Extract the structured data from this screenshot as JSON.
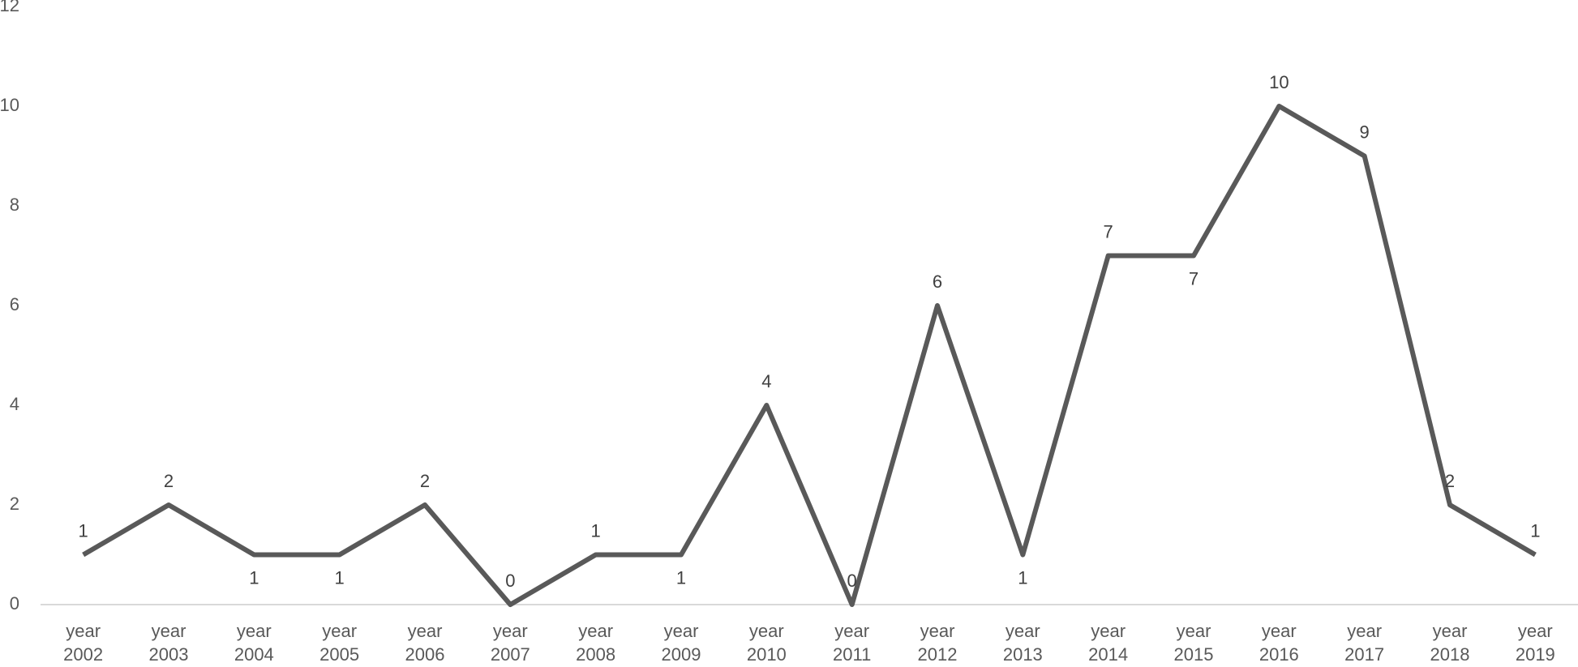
{
  "chart_data": {
    "type": "line",
    "categories": [
      "year 2002",
      "year 2003",
      "year 2004",
      "year 2005",
      "year 2006",
      "year 2007",
      "year 2008",
      "year 2009",
      "year 2010",
      "year 2011",
      "year 2012",
      "year 2013",
      "year 2014",
      "year 2015",
      "year 2016",
      "year 2017",
      "year 2018",
      "year 2019"
    ],
    "series": [
      {
        "color": "#595959",
        "values": [
          1,
          2,
          1,
          1,
          2,
          0,
          1,
          1,
          4,
          0,
          6,
          1,
          7,
          7,
          10,
          9,
          2,
          1
        ]
      }
    ],
    "ylim": [
      0,
      12
    ],
    "yticks": [
      0,
      2,
      4,
      6,
      8,
      10,
      12
    ],
    "grid": false,
    "data_labels": true
  }
}
